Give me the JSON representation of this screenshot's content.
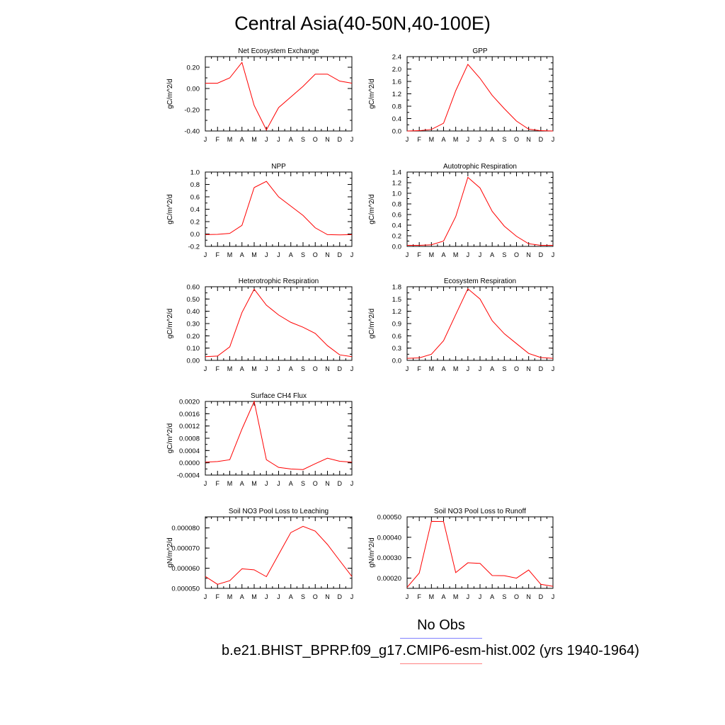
{
  "title": "Central Asia(40-50N,40-100E)",
  "legend": {
    "entries": [
      {
        "label": "No Obs",
        "color": "#8080ff"
      },
      {
        "label": "b.e21.BHIST_BPRP.f09_g17.CMIP6-esm-hist.002 (yrs 1940-1964)",
        "color": "#ff8080"
      }
    ]
  },
  "line_color": "#ff0000",
  "chart_data": [
    {
      "type": "line",
      "title": "Net Ecosystem Exchange",
      "ylabel": "gC/m^2/d",
      "categories": [
        "J",
        "F",
        "M",
        "A",
        "M",
        "J",
        "J",
        "A",
        "S",
        "O",
        "N",
        "D",
        "J"
      ],
      "yticks": [
        "0.20",
        "0.00",
        "-0.20",
        "-0.40"
      ],
      "ytick_values": [
        0.2,
        0.0,
        -0.2,
        -0.4
      ],
      "ylim": [
        -0.4,
        0.3
      ],
      "series": [
        {
          "values": [
            0.05,
            0.05,
            0.1,
            0.245,
            -0.16,
            -0.39,
            -0.18,
            -0.08,
            0.02,
            0.135,
            0.135,
            0.07,
            0.05
          ]
        }
      ]
    },
    {
      "type": "line",
      "title": "GPP",
      "ylabel": "gC/m^2/d",
      "categories": [
        "J",
        "F",
        "M",
        "A",
        "M",
        "J",
        "J",
        "A",
        "S",
        "O",
        "N",
        "D",
        "J"
      ],
      "yticks": [
        "2.4",
        "2.0",
        "1.6",
        "1.2",
        "0.8",
        "0.4",
        "0.0"
      ],
      "ytick_values": [
        2.4,
        2.0,
        1.6,
        1.2,
        0.8,
        0.4,
        0.0
      ],
      "ylim": [
        0,
        2.4
      ],
      "series": [
        {
          "values": [
            0.0,
            0.01,
            0.05,
            0.25,
            1.3,
            2.15,
            1.7,
            1.15,
            0.72,
            0.32,
            0.06,
            0.01,
            0.0
          ]
        }
      ]
    },
    {
      "type": "line",
      "title": "NPP",
      "ylabel": "gC/m^2/d",
      "categories": [
        "J",
        "F",
        "M",
        "A",
        "M",
        "J",
        "J",
        "A",
        "S",
        "O",
        "N",
        "D",
        "J"
      ],
      "yticks": [
        "1.0",
        "0.8",
        "0.6",
        "0.4",
        "0.2",
        "0.0",
        "-0.2"
      ],
      "ytick_values": [
        1.0,
        0.8,
        0.6,
        0.4,
        0.2,
        0.0,
        -0.2
      ],
      "ylim": [
        -0.2,
        1.0
      ],
      "series": [
        {
          "values": [
            -0.01,
            -0.005,
            0.01,
            0.14,
            0.75,
            0.85,
            0.6,
            0.45,
            0.3,
            0.1,
            -0.01,
            -0.015,
            -0.01
          ]
        }
      ]
    },
    {
      "type": "line",
      "title": "Autotrophic Respiration",
      "ylabel": "gC/m^2/d",
      "categories": [
        "J",
        "F",
        "M",
        "A",
        "M",
        "J",
        "J",
        "A",
        "S",
        "O",
        "N",
        "D",
        "J"
      ],
      "yticks": [
        "1.4",
        "1.2",
        "1.0",
        "0.8",
        "0.6",
        "0.4",
        "0.2",
        "0.0"
      ],
      "ytick_values": [
        1.4,
        1.2,
        1.0,
        0.8,
        0.6,
        0.4,
        0.2,
        0.0
      ],
      "ylim": [
        0,
        1.4
      ],
      "series": [
        {
          "values": [
            0.02,
            0.02,
            0.03,
            0.1,
            0.56,
            1.3,
            1.1,
            0.66,
            0.38,
            0.19,
            0.05,
            0.02,
            0.02
          ]
        }
      ]
    },
    {
      "type": "line",
      "title": "Heterotrophic Respiration",
      "ylabel": "gC/m^2/d",
      "categories": [
        "J",
        "F",
        "M",
        "A",
        "M",
        "J",
        "J",
        "A",
        "S",
        "O",
        "N",
        "D",
        "J"
      ],
      "yticks": [
        "0.60",
        "0.50",
        "0.40",
        "0.30",
        "0.20",
        "0.10",
        "0.00"
      ],
      "ytick_values": [
        0.6,
        0.5,
        0.4,
        0.3,
        0.2,
        0.1,
        0.0
      ],
      "ylim": [
        0,
        0.6
      ],
      "series": [
        {
          "values": [
            0.03,
            0.035,
            0.11,
            0.39,
            0.58,
            0.45,
            0.37,
            0.31,
            0.27,
            0.22,
            0.12,
            0.045,
            0.03
          ]
        }
      ]
    },
    {
      "type": "line",
      "title": "Ecosystem Respiration",
      "ylabel": "gC/m^2/d",
      "categories": [
        "J",
        "F",
        "M",
        "A",
        "M",
        "J",
        "J",
        "A",
        "S",
        "O",
        "N",
        "D",
        "J"
      ],
      "yticks": [
        "1.8",
        "1.5",
        "1.2",
        "0.9",
        "0.6",
        "0.3",
        "0.0"
      ],
      "ytick_values": [
        1.8,
        1.5,
        1.2,
        0.9,
        0.6,
        0.3,
        0.0
      ],
      "ylim": [
        0,
        1.8
      ],
      "series": [
        {
          "values": [
            0.05,
            0.06,
            0.15,
            0.48,
            1.12,
            1.75,
            1.5,
            0.97,
            0.65,
            0.41,
            0.17,
            0.07,
            0.05
          ]
        }
      ]
    },
    {
      "type": "line",
      "title": "Surface CH4 Flux",
      "ylabel": "gC/m^2/d",
      "categories": [
        "J",
        "F",
        "M",
        "A",
        "M",
        "J",
        "J",
        "A",
        "S",
        "O",
        "N",
        "D",
        "J"
      ],
      "yticks": [
        "0.0020",
        "0.0016",
        "0.0012",
        "0.0008",
        "0.0004",
        "0.0000",
        "-0.0004"
      ],
      "ytick_values": [
        0.002,
        0.0016,
        0.0012,
        0.0008,
        0.0004,
        0.0,
        -0.0004
      ],
      "ylim": [
        -0.0004,
        0.002
      ],
      "series": [
        {
          "values": [
            2e-05,
            4e-05,
            0.0001,
            0.0011,
            0.002,
            0.0001,
            -0.00015,
            -0.0002,
            -0.00022,
            -3e-05,
            0.00015,
            5e-05,
            2e-05
          ]
        }
      ]
    },
    {
      "type": "line",
      "title": "Soil NO3 Pool Loss to Leaching",
      "ylabel": "gN/m^2/d",
      "categories": [
        "J",
        "F",
        "M",
        "A",
        "M",
        "J",
        "J",
        "A",
        "S",
        "O",
        "N",
        "D",
        "J"
      ],
      "yticks": [
        "0.000080",
        "0.000070",
        "0.000060",
        "0.000050"
      ],
      "ytick_values": [
        8e-05,
        7e-05,
        6e-05,
        5e-05
      ],
      "ylim": [
        5e-05,
        8.55e-05
      ],
      "series": [
        {
          "values": [
            5.59e-05,
            5.2e-05,
            5.38e-05,
            5.97e-05,
            5.92e-05,
            5.58e-05,
            6.68e-05,
            7.77e-05,
            8.08e-05,
            7.84e-05,
            7.18e-05,
            6.38e-05,
            5.59e-05
          ]
        }
      ]
    },
    {
      "type": "line",
      "title": "Soil NO3 Pool Loss to Runoff",
      "ylabel": "gN/m^2/d",
      "categories": [
        "J",
        "F",
        "M",
        "A",
        "M",
        "J",
        "J",
        "A",
        "S",
        "O",
        "N",
        "D",
        "J"
      ],
      "yticks": [
        "0.00050",
        "0.00040",
        "0.00030",
        "0.00020"
      ],
      "ytick_values": [
        0.0005,
        0.0004,
        0.0003,
        0.0002
      ],
      "ylim": [
        0.00015,
        0.0005
      ],
      "series": [
        {
          "values": [
            0.000155,
            0.000225,
            0.000478,
            0.000477,
            0.000227,
            0.000275,
            0.000272,
            0.000213,
            0.000212,
            0.0002,
            0.00024,
            0.00017,
            0.00016
          ]
        }
      ]
    }
  ]
}
